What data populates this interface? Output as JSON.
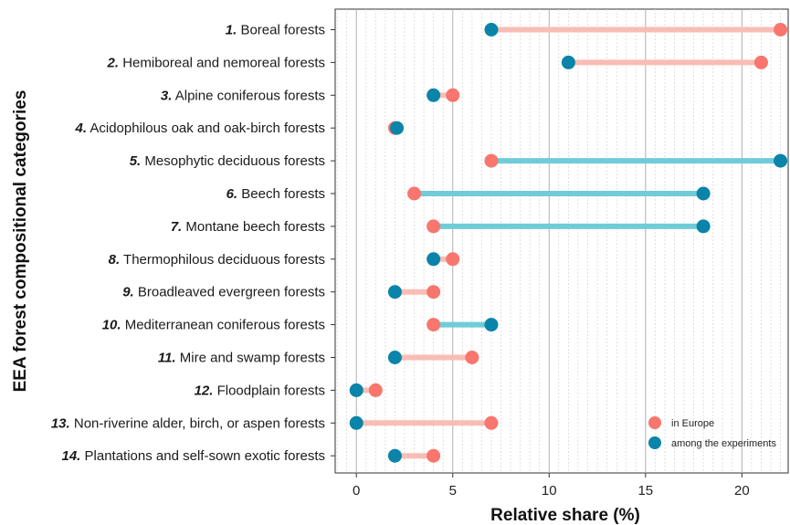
{
  "chart_data": {
    "type": "dumbbell",
    "xlabel": "Relative share (%)",
    "ylabel": "EEA forest compositional categories",
    "xlim": [
      -1.1,
      22.4
    ],
    "xticks": [
      0,
      5,
      10,
      15,
      20
    ],
    "xtick_labels": [
      "0",
      "5",
      "10",
      "15",
      "20"
    ],
    "grid": true,
    "legend_position": "bottom-right",
    "categories": [
      {
        "num": "1.",
        "name": "Boreal forests"
      },
      {
        "num": "2.",
        "name": "Hemiboreal and nemoreal forests"
      },
      {
        "num": "3.",
        "name": "Alpine coniferous forests"
      },
      {
        "num": "4.",
        "name": "Acidophilous oak and oak-birch forests"
      },
      {
        "num": "5.",
        "name": "Mesophytic deciduous forests"
      },
      {
        "num": "6.",
        "name": "Beech forests"
      },
      {
        "num": "7.",
        "name": "Montane beech forests"
      },
      {
        "num": "8.",
        "name": "Thermophilous deciduous forests"
      },
      {
        "num": "9.",
        "name": "Broadleaved evergreen forests"
      },
      {
        "num": "10.",
        "name": "Mediterranean coniferous forests"
      },
      {
        "num": "11.",
        "name": "Mire and swamp forests"
      },
      {
        "num": "12.",
        "name": "Floodplain forests"
      },
      {
        "num": "13.",
        "name": "Non-riverine alder, birch, or aspen forests"
      },
      {
        "num": "14.",
        "name": "Plantations and self-sown exotic forests"
      }
    ],
    "series": [
      {
        "name": "in Europe",
        "color": "#F8766D",
        "values": [
          22,
          21,
          5,
          2,
          7,
          3,
          4,
          5,
          4,
          4,
          6,
          1,
          7,
          4
        ]
      },
      {
        "name": "among the experiments",
        "color": "#0A84A8",
        "values": [
          7,
          11,
          4,
          2.1,
          22,
          18,
          18,
          4,
          2,
          7,
          2,
          0,
          0,
          2
        ]
      }
    ],
    "segment_colors": {
      "europe_higher": "#F9BDB5",
      "experiments_higher": "#6FCCD8"
    }
  }
}
